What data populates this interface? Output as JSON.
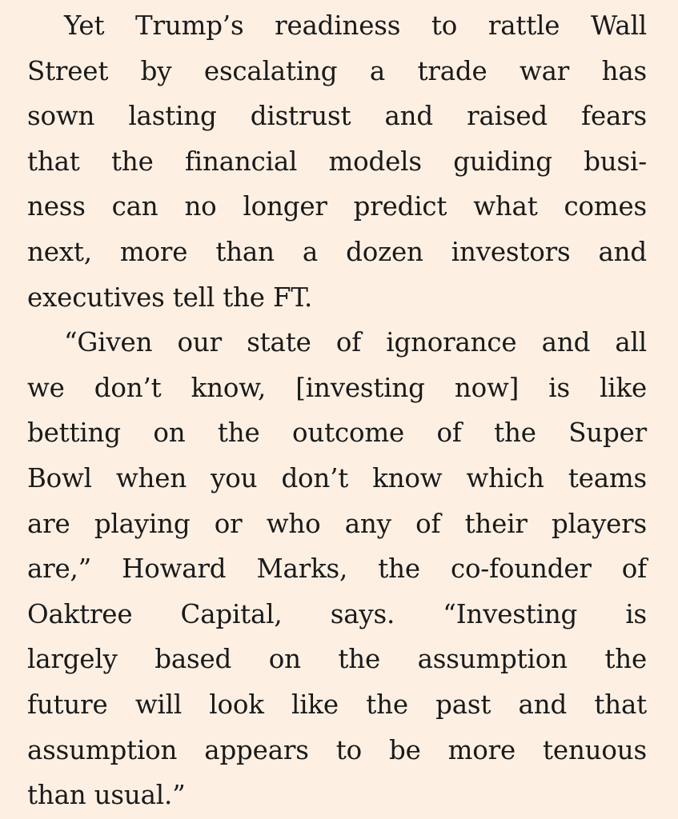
{
  "article": {
    "paragraphs": [
      {
        "lines": [
          "Yet Trump’s readiness to rattle Wall",
          "Street by escalating a trade war has",
          "sown lasting distrust and raised fears",
          "that the financial models guiding busi-",
          "ness can no longer predict what comes",
          "next, more than a dozen investors and",
          "executives tell the FT."
        ]
      },
      {
        "lines": [
          "“Given our state of ignorance and all",
          "we don’t know, [investing now] is like",
          "betting on the outcome of the Super",
          "Bowl when you don’t know which teams",
          "are playing or who any of their players",
          "are,” Howard Marks, the co-founder of",
          "Oaktree Capital, says. “Investing is",
          "largely based on the assumption the",
          "future will look like the past and that",
          "assumption appears to be more tenuous",
          "than usual.”"
        ]
      }
    ]
  }
}
